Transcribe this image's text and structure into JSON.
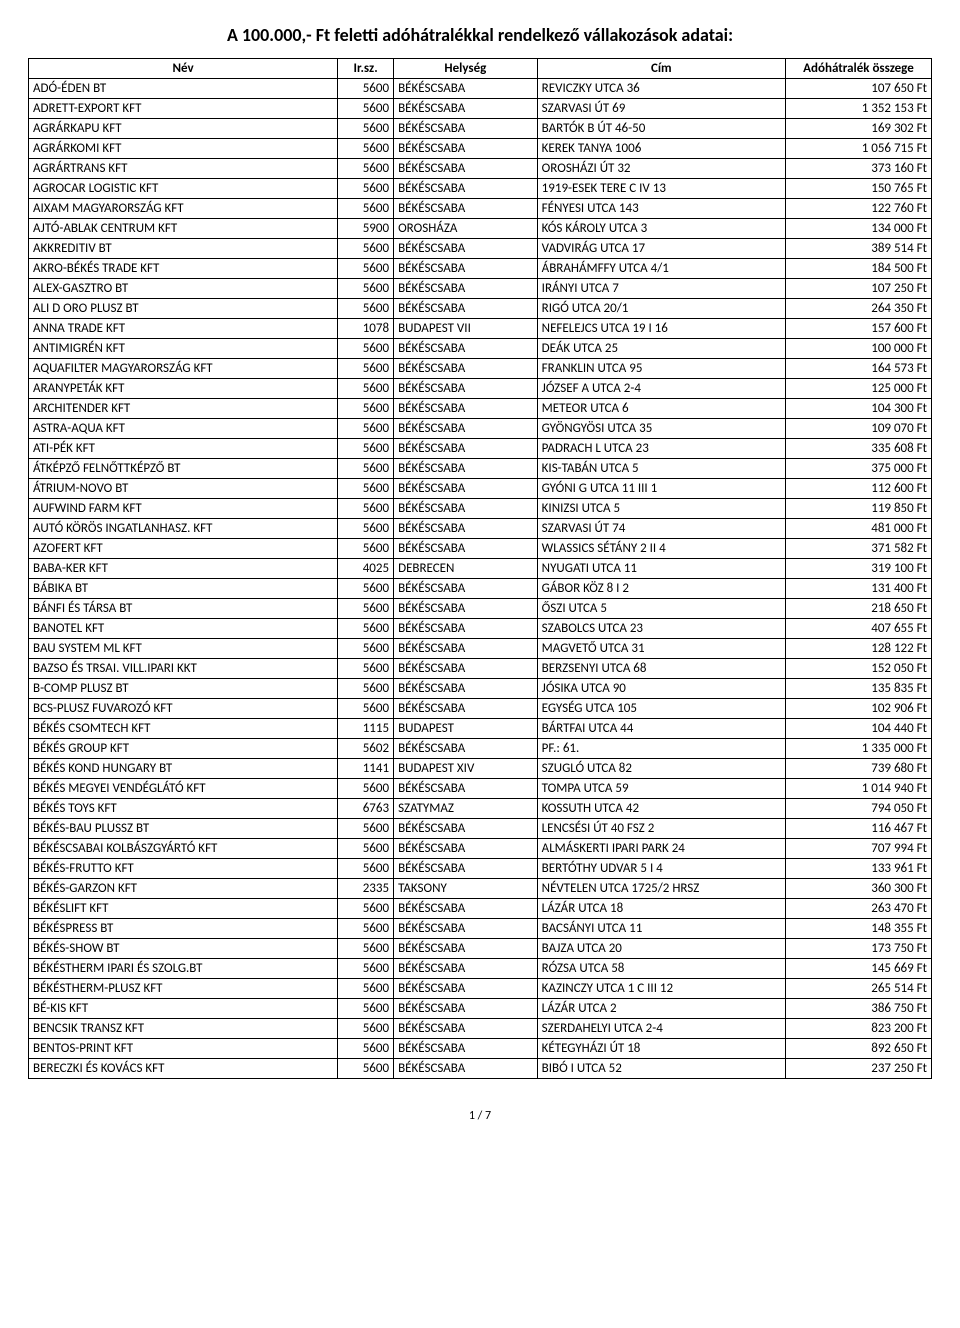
{
  "title": "A 100.000,- Ft feletti adóhátralékkal rendelkező vállakozások adatai:",
  "columns": {
    "nev": "Név",
    "irsz": "Ir.sz.",
    "hely": "Helység",
    "cim": "Cím",
    "amount": "Adóhátralék összege"
  },
  "rows": [
    {
      "nev": "ADÓ-ÉDEN BT",
      "irsz": "5600",
      "hely": "BÉKÉSCSABA",
      "cim": "REVICZKY UTCA 36",
      "amount": "107 650 Ft"
    },
    {
      "nev": "ADRETT-EXPORT KFT",
      "irsz": "5600",
      "hely": "BÉKÉSCSABA",
      "cim": "SZARVASI ÚT  69",
      "amount": "1 352 153 Ft"
    },
    {
      "nev": "AGRÁRKAPU KFT",
      "irsz": "5600",
      "hely": "BÉKÉSCSABA",
      "cim": "BARTÓK B ÚT 46-50",
      "amount": "169 302 Ft"
    },
    {
      "nev": "AGRÁRKOMI KFT",
      "irsz": "5600",
      "hely": "BÉKÉSCSABA",
      "cim": "KEREK TANYA 1006",
      "amount": "1 056 715 Ft"
    },
    {
      "nev": "AGRÁRTRANS KFT",
      "irsz": "5600",
      "hely": "BÉKÉSCSABA",
      "cim": "OROSHÁZI ÚT  32",
      "amount": "373 160 Ft"
    },
    {
      "nev": "AGROCAR LOGISTIC KFT",
      "irsz": "5600",
      "hely": "BÉKÉSCSABA",
      "cim": "1919-ESEK TERE C IV 13",
      "amount": "150 765 Ft"
    },
    {
      "nev": "AIXAM MAGYARORSZÁG KFT",
      "irsz": "5600",
      "hely": "BÉKÉSCSABA",
      "cim": "FÉNYESI UTCA 143",
      "amount": "122 760 Ft"
    },
    {
      "nev": "AJTÓ-ABLAK CENTRUM KFT",
      "irsz": "5900",
      "hely": "OROSHÁZA",
      "cim": "KÓS KÁROLY UTCA 3",
      "amount": "134 000 Ft"
    },
    {
      "nev": "AKKREDITIV BT",
      "irsz": "5600",
      "hely": "BÉKÉSCSABA",
      "cim": "VADVIRÁG UTCA 17",
      "amount": "389 514 Ft"
    },
    {
      "nev": "AKRO-BÉKÉS TRADE KFT",
      "irsz": "5600",
      "hely": "BÉKÉSCSABA",
      "cim": "ÁBRAHÁMFFY UTCA  4/1",
      "amount": "184 500 Ft"
    },
    {
      "nev": "ALEX-GASZTRO BT",
      "irsz": "5600",
      "hely": "BÉKÉSCSABA",
      "cim": "IRÁNYI UTCA  7",
      "amount": "107 250 Ft"
    },
    {
      "nev": "ALI D ORO PLUSZ BT",
      "irsz": "5600",
      "hely": "BÉKÉSCSABA",
      "cim": "RIGÓ UTCA 20/1",
      "amount": "264 350 Ft"
    },
    {
      "nev": "ANNA TRADE KFT",
      "irsz": "1078",
      "hely": "BUDAPEST VII",
      "cim": "NEFELEJCS UTCA 19 I 16",
      "amount": "157 600 Ft"
    },
    {
      "nev": "ANTIMIGRÉN KFT",
      "irsz": "5600",
      "hely": "BÉKÉSCSABA",
      "cim": "DEÁK UTCA 25",
      "amount": "100 000 Ft"
    },
    {
      "nev": "AQUAFILTER MAGYARORSZÁG KFT",
      "irsz": "5600",
      "hely": "BÉKÉSCSABA",
      "cim": "FRANKLIN UTCA  95",
      "amount": "164 573 Ft"
    },
    {
      "nev": "ARANYPETÁK KFT",
      "irsz": "5600",
      "hely": "BÉKÉSCSABA",
      "cim": "JÓZSEF A UTCA  2-4",
      "amount": "125 000 Ft"
    },
    {
      "nev": "ARCHITENDER KFT",
      "irsz": "5600",
      "hely": "BÉKÉSCSABA",
      "cim": "METEOR UTCA  6",
      "amount": "104 300 Ft"
    },
    {
      "nev": "ASTRA-AQUA KFT",
      "irsz": "5600",
      "hely": "BÉKÉSCSABA",
      "cim": "GYÖNGYÖSI UTCA  35",
      "amount": "109 070 Ft"
    },
    {
      "nev": "ATI-PÉK KFT",
      "irsz": "5600",
      "hely": "BÉKÉSCSABA",
      "cim": "PADRACH L UTCA 23",
      "amount": "335 608 Ft"
    },
    {
      "nev": "ÁTKÉPZŐ FELNŐTTKÉPZŐ BT",
      "irsz": "5600",
      "hely": "BÉKÉSCSABA",
      "cim": "KIS-TABÁN UTCA  5",
      "amount": "375 000 Ft"
    },
    {
      "nev": "ÁTRIUM-NOVO BT",
      "irsz": "5600",
      "hely": "BÉKÉSCSABA",
      "cim": "GYÓNI G UTCA 11 III 1",
      "amount": "112 600 Ft"
    },
    {
      "nev": "AUFWIND FARM KFT",
      "irsz": "5600",
      "hely": "BÉKÉSCSABA",
      "cim": "KINIZSI UTCA  5",
      "amount": "119 850 Ft"
    },
    {
      "nev": "AUTÓ KÖRÖS INGATLANHASZ. KFT",
      "irsz": "5600",
      "hely": "BÉKÉSCSABA",
      "cim": "SZARVASI ÚT  74",
      "amount": "481 000 Ft"
    },
    {
      "nev": "AZOFERT KFT",
      "irsz": "5600",
      "hely": "BÉKÉSCSABA",
      "cim": "WLASSICS SÉTÁNY  2 II 4",
      "amount": "371 582 Ft"
    },
    {
      "nev": "BABA-KER KFT",
      "irsz": "4025",
      "hely": "DEBRECEN",
      "cim": "NYUGATI UTCA 11",
      "amount": "319 100 Ft"
    },
    {
      "nev": "BÁBIKA BT",
      "irsz": "5600",
      "hely": "BÉKÉSCSABA",
      "cim": "GÁBOR KÖZ  8 I 2",
      "amount": "131 400 Ft"
    },
    {
      "nev": "BÁNFI ÉS TÁRSA BT",
      "irsz": "5600",
      "hely": "BÉKÉSCSABA",
      "cim": "ŐSZI UTCA 5",
      "amount": "218 650 Ft"
    },
    {
      "nev": "BANOTEL KFT",
      "irsz": "5600",
      "hely": "BÉKÉSCSABA",
      "cim": "SZABOLCS UTCA 23",
      "amount": "407 655 Ft"
    },
    {
      "nev": "BAU SYSTEM ML KFT",
      "irsz": "5600",
      "hely": "BÉKÉSCSABA",
      "cim": "MAGVETŐ UTCA 31",
      "amount": "128 122 Ft"
    },
    {
      "nev": "BAZSO ÉS TRSAI. VILL.IPARI KKT",
      "irsz": "5600",
      "hely": "BÉKÉSCSABA",
      "cim": "BERZSENYI UTCA  68",
      "amount": "152 050 Ft"
    },
    {
      "nev": "B-COMP PLUSZ BT",
      "irsz": "5600",
      "hely": "BÉKÉSCSABA",
      "cim": "JÓSIKA UTCA  90",
      "amount": "135 835 Ft"
    },
    {
      "nev": "BCS-PLUSZ FUVAROZÓ KFT",
      "irsz": "5600",
      "hely": "BÉKÉSCSABA",
      "cim": "EGYSÉG UTCA 105",
      "amount": "102 906 Ft"
    },
    {
      "nev": "BÉKÉS CSOMTECH KFT",
      "irsz": "1115",
      "hely": "BUDAPEST",
      "cim": "BÁRTFAI UTCA 44",
      "amount": "104 440 Ft"
    },
    {
      "nev": "BÉKÉS GROUP KFT",
      "irsz": "5602",
      "hely": "BÉKÉSCSABA",
      "cim": "PF.: 61.",
      "amount": "1 335 000 Ft"
    },
    {
      "nev": "BÉKÉS KOND HUNGARY BT",
      "irsz": "1141",
      "hely": "BUDAPEST XIV",
      "cim": "SZUGLÓ UTCA 82",
      "amount": "739 680 Ft"
    },
    {
      "nev": "BÉKÉS MEGYEI VENDÉGLÁTÓ KFT",
      "irsz": "5600",
      "hely": "BÉKÉSCSABA",
      "cim": "TOMPA UTCA 59",
      "amount": "1 014 940 Ft"
    },
    {
      "nev": "BÉKÉS TOYS KFT",
      "irsz": "6763",
      "hely": "SZATYMAZ",
      "cim": "KOSSUTH UTCA 42",
      "amount": "794 050 Ft"
    },
    {
      "nev": "BÉKÉS-BAU PLUSSZ BT",
      "irsz": "5600",
      "hely": "BÉKÉSCSABA",
      "cim": "LENCSÉSI ÚT  40 FSZ 2",
      "amount": "116 467 Ft"
    },
    {
      "nev": "BÉKÉSCSABAI KOLBÁSZGYÁRTÓ KFT",
      "irsz": "5600",
      "hely": "BÉKÉSCSABA",
      "cim": "ALMÁSKERTI IPARI PARK 24",
      "amount": "707 994 Ft"
    },
    {
      "nev": "BÉKÉS-FRUTTO KFT",
      "irsz": "5600",
      "hely": "BÉKÉSCSABA",
      "cim": "BERTÓTHY UDVAR 5 I 4",
      "amount": "133 961 Ft"
    },
    {
      "nev": "BÉKÉS-GARZON KFT",
      "irsz": "2335",
      "hely": "TAKSONY",
      "cim": "NÉVTELEN UTCA 1725/2 HRSZ",
      "amount": "360 300 Ft"
    },
    {
      "nev": "BÉKÉSLIFT KFT",
      "irsz": "5600",
      "hely": "BÉKÉSCSABA",
      "cim": "LÁZÁR UTCA 18",
      "amount": "263 470 Ft"
    },
    {
      "nev": "BÉKÉSPRESS BT",
      "irsz": "5600",
      "hely": "BÉKÉSCSABA",
      "cim": "BACSÁNYI UTCA 11",
      "amount": "148 355 Ft"
    },
    {
      "nev": "BÉKÉS-SHOW BT",
      "irsz": "5600",
      "hely": "BÉKÉSCSABA",
      "cim": "BAJZA UTCA 20",
      "amount": "173 750 Ft"
    },
    {
      "nev": "BÉKÉSTHERM IPARI ÉS SZOLG.BT",
      "irsz": "5600",
      "hely": "BÉKÉSCSABA",
      "cim": "RÓZSA UTCA 58",
      "amount": "145 669 Ft"
    },
    {
      "nev": "BÉKÉSTHERM-PLUSZ KFT",
      "irsz": "5600",
      "hely": "BÉKÉSCSABA",
      "cim": "KAZINCZY UTCA  1 C III 12",
      "amount": "265 514 Ft"
    },
    {
      "nev": "BÉ-KIS KFT",
      "irsz": "5600",
      "hely": "BÉKÉSCSABA",
      "cim": "LÁZÁR UTCA  2",
      "amount": "386 750 Ft"
    },
    {
      "nev": "BENCSIK TRANSZ KFT",
      "irsz": "5600",
      "hely": "BÉKÉSCSABA",
      "cim": "SZERDAHELYI UTCA  2-4",
      "amount": "823 200 Ft"
    },
    {
      "nev": "BENTOS-PRINT KFT",
      "irsz": "5600",
      "hely": "BÉKÉSCSABA",
      "cim": "KÉTEGYHÁZI ÚT 18",
      "amount": "892 650 Ft"
    },
    {
      "nev": "BERECZKI ÉS KOVÁCS KFT",
      "irsz": "5600",
      "hely": "BÉKÉSCSABA",
      "cim": "BIBÓ I UTCA 52",
      "amount": "237 250 Ft"
    }
  ],
  "pager": "1 / 7"
}
